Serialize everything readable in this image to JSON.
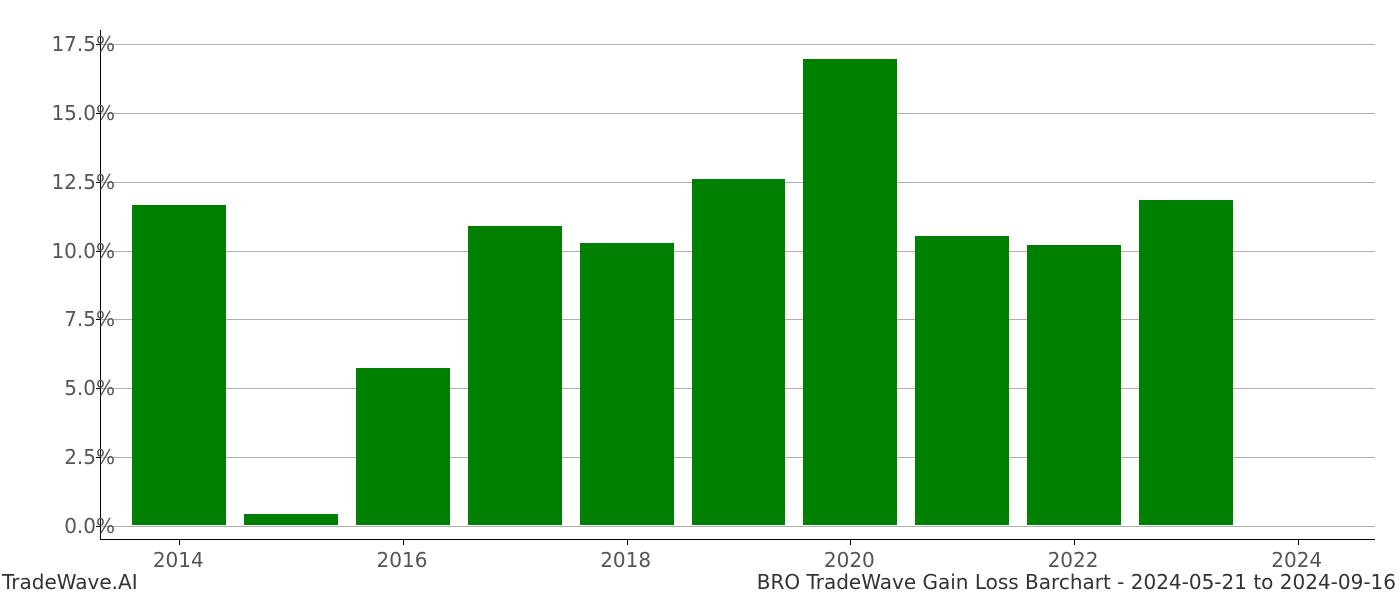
{
  "chart": {
    "type": "bar",
    "background_color": "#ffffff",
    "grid_color": "#b0b0b0",
    "axis_color": "#000000",
    "label_color": "#555555",
    "bar_color": "#008000",
    "label_fontsize": 20,
    "footer_fontsize": 20,
    "ylim_min": -0.5,
    "ylim_max": 18.0,
    "yticks": [
      {
        "value": 0.0,
        "label": "0.0%"
      },
      {
        "value": 2.5,
        "label": "2.5%"
      },
      {
        "value": 5.0,
        "label": "5.0%"
      },
      {
        "value": 7.5,
        "label": "7.5%"
      },
      {
        "value": 10.0,
        "label": "10.0%"
      },
      {
        "value": 12.5,
        "label": "12.5%"
      },
      {
        "value": 15.0,
        "label": "15.0%"
      },
      {
        "value": 17.5,
        "label": "17.5%"
      }
    ],
    "xticks": [
      {
        "year": 2014,
        "label": "2014"
      },
      {
        "year": 2016,
        "label": "2016"
      },
      {
        "year": 2018,
        "label": "2018"
      },
      {
        "year": 2020,
        "label": "2020"
      },
      {
        "year": 2022,
        "label": "2022"
      },
      {
        "year": 2024,
        "label": "2024"
      }
    ],
    "x_domain_min": 2013.3,
    "x_domain_max": 2024.7,
    "bar_width_years": 0.84,
    "bars": [
      {
        "year": 2014,
        "value": 11.6
      },
      {
        "year": 2015,
        "value": 0.4
      },
      {
        "year": 2016,
        "value": 5.7
      },
      {
        "year": 2017,
        "value": 10.85
      },
      {
        "year": 2018,
        "value": 10.25
      },
      {
        "year": 2019,
        "value": 12.55
      },
      {
        "year": 2020,
        "value": 16.9
      },
      {
        "year": 2021,
        "value": 10.5
      },
      {
        "year": 2022,
        "value": 10.15
      },
      {
        "year": 2023,
        "value": 11.8
      },
      {
        "year": 2024,
        "value": 0.0
      }
    ],
    "footer_left": "TradeWave.AI",
    "footer_right": "BRO TradeWave Gain Loss Barchart - 2024-05-21 to 2024-09-16"
  }
}
